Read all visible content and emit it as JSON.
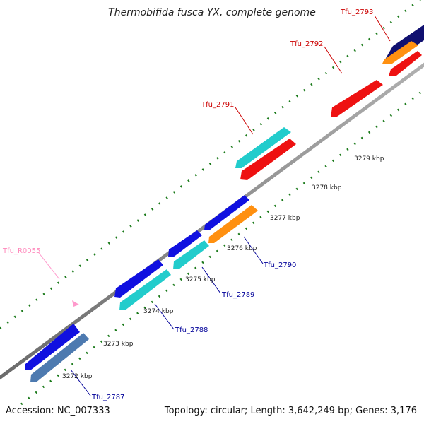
{
  "title": "Thermobifida fusca YX, complete genome",
  "accession": "Accession: NC_007333",
  "summary": "Topology: circular; Length: 3,642,249 bp; Genes: 3,176",
  "colors": {
    "backbone": "#8c8c8c",
    "ticks": "#1a7a1a",
    "blue": "#1010e0",
    "cyan": "#22cccc",
    "red": "#ee1111",
    "orange": "#ff9010",
    "steelblue": "#4d7ab0",
    "navy": "#101070",
    "rna_pink": "#ff99cc"
  },
  "kbp_labels": [
    "3272 kbp",
    "3273 kbp",
    "3274 kbp",
    "3275 kbp",
    "3276 kbp",
    "3277 kbp",
    "3278 kbp",
    "3279 kbp"
  ],
  "gene_labels": {
    "tfu_2787": "Tfu_2787",
    "tfu_2788": "Tfu_2788",
    "tfu_2789": "Tfu_2789",
    "tfu_2790": "Tfu_2790",
    "tfu_2791": "Tfu_2791",
    "tfu_2792": "Tfu_2792",
    "tfu_2793": "Tfu_2793",
    "tfu_r0055": "Tfu_R0055"
  }
}
